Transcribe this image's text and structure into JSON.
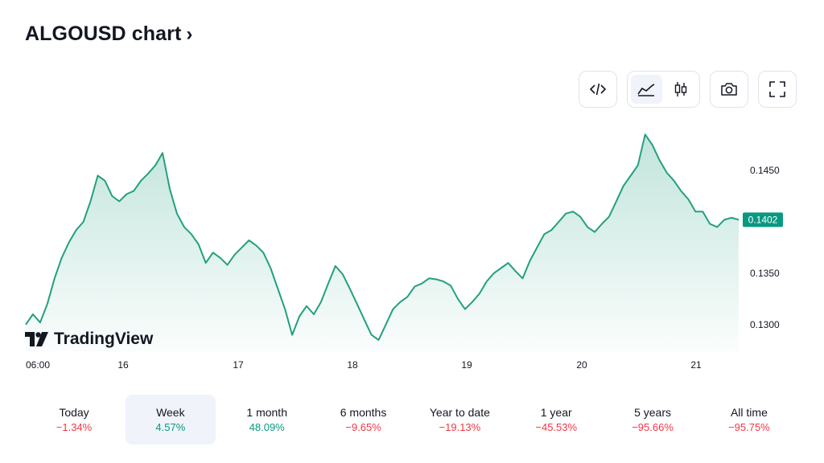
{
  "header": {
    "title": "ALGOUSD chart",
    "chevron": "›"
  },
  "toolbar": {
    "embed_icon": "code-icon",
    "chart_type_icons": [
      "area-chart-icon",
      "candlestick-icon"
    ],
    "active_chart_type": "area",
    "screenshot_icon": "camera-icon",
    "fullscreen_icon": "fullscreen-icon"
  },
  "logo": {
    "text": "TradingView"
  },
  "chart_data": {
    "type": "area",
    "x_tick_labels": [
      "06:00",
      "16",
      "17",
      "18",
      "19",
      "20",
      "21"
    ],
    "y_tick_labels": [
      "0.1450",
      "0.1350",
      "0.1300"
    ],
    "ylim": [
      0.1274,
      0.1497
    ],
    "last_price": "0.1402",
    "colors": {
      "line": "#22a07f",
      "fill_top": "#22a07f",
      "price_label_bg": "#089981"
    },
    "series": [
      {
        "values": [
          0.13,
          0.131,
          0.1302,
          0.132,
          0.1345,
          0.1365,
          0.138,
          0.1392,
          0.14,
          0.142,
          0.1445,
          0.144,
          0.1425,
          0.142,
          0.1427,
          0.143,
          0.144,
          0.1447,
          0.1455,
          0.1467,
          0.1432,
          0.1408,
          0.1395,
          0.1388,
          0.1378,
          0.136,
          0.137,
          0.1365,
          0.1358,
          0.1368,
          0.1375,
          0.1382,
          0.1377,
          0.137,
          0.1355,
          0.1335,
          0.1315,
          0.129,
          0.1308,
          0.1318,
          0.131,
          0.1322,
          0.134,
          0.1357,
          0.1349,
          0.1335,
          0.132,
          0.1305,
          0.129,
          0.1285,
          0.13,
          0.1315,
          0.1322,
          0.1327,
          0.1337,
          0.134,
          0.1345,
          0.1344,
          0.1342,
          0.1338,
          0.1325,
          0.1315,
          0.1322,
          0.133,
          0.1342,
          0.135,
          0.1355,
          0.136,
          0.1352,
          0.1345,
          0.1362,
          0.1375,
          0.1388,
          0.1392,
          0.14,
          0.1408,
          0.141,
          0.1405,
          0.1395,
          0.139,
          0.1398,
          0.1405,
          0.142,
          0.1435,
          0.1445,
          0.1455,
          0.1485,
          0.1475,
          0.146,
          0.1448,
          0.144,
          0.143,
          0.1422,
          0.141,
          0.141,
          0.1398,
          0.1395,
          0.1402,
          0.1404,
          0.1402
        ]
      }
    ]
  },
  "periods": [
    {
      "label": "Today",
      "change": "−1.34%",
      "dir": "down"
    },
    {
      "label": "Week",
      "change": "4.57%",
      "dir": "up",
      "active": true
    },
    {
      "label": "1 month",
      "change": "48.09%",
      "dir": "up"
    },
    {
      "label": "6 months",
      "change": "−9.65%",
      "dir": "down"
    },
    {
      "label": "Year to date",
      "change": "−19.13%",
      "dir": "down"
    },
    {
      "label": "1 year",
      "change": "−45.53%",
      "dir": "down"
    },
    {
      "label": "5 years",
      "change": "−95.66%",
      "dir": "down"
    },
    {
      "label": "All time",
      "change": "−95.75%",
      "dir": "down"
    }
  ],
  "colors": {
    "up": "#089981",
    "down": "#f23645",
    "text": "#131722"
  }
}
